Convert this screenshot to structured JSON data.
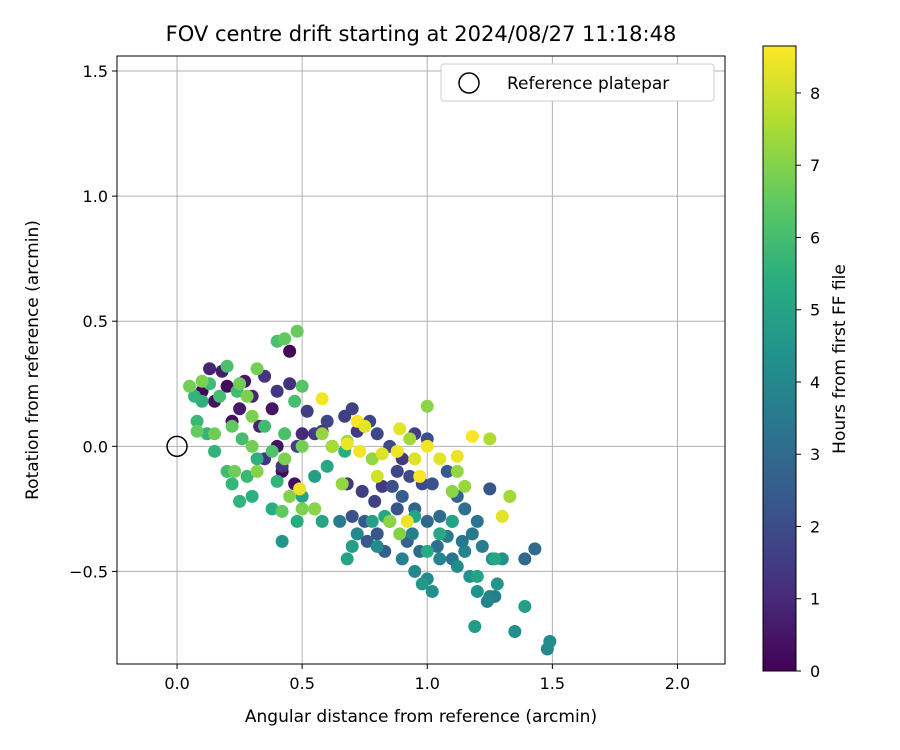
{
  "chart_data": {
    "type": "scatter",
    "title": "FOV centre drift starting at 2024/08/27 11:18:48",
    "xlabel": "Angular distance from reference (arcmin)",
    "ylabel": "Rotation from reference (arcmin)",
    "xlim": [
      -0.24,
      2.19
    ],
    "ylim": [
      -0.87,
      1.56
    ],
    "xticks": [
      0.0,
      0.5,
      1.0,
      1.5,
      2.0
    ],
    "xtick_labels": [
      "0.0",
      "0.5",
      "1.0",
      "1.5",
      "2.0"
    ],
    "yticks": [
      -0.5,
      0.0,
      0.5,
      1.0,
      1.5
    ],
    "ytick_labels": [
      "−0.5",
      "0.0",
      "0.5",
      "1.0",
      "1.5"
    ],
    "grid": true,
    "legend": {
      "position": "top-right",
      "entries": [
        "Reference platepar"
      ]
    },
    "colorbar": {
      "label": "Hours from first FF file",
      "range": [
        0,
        8.65
      ],
      "ticks": [
        0,
        1,
        2,
        3,
        4,
        5,
        6,
        7,
        8
      ],
      "tick_labels": [
        "0",
        "1",
        "2",
        "3",
        "4",
        "5",
        "6",
        "7",
        "8"
      ],
      "colormap": "viridis"
    },
    "reference_point": {
      "x": 0.0,
      "y": 0.0,
      "name": "Reference platepar"
    },
    "series": [
      {
        "values": [
          [
            0.1,
            0.22,
            0.0
          ],
          [
            0.15,
            0.18,
            0.4
          ],
          [
            0.2,
            0.24,
            0.2
          ],
          [
            0.25,
            0.15,
            0.6
          ],
          [
            0.3,
            0.2,
            0.9
          ],
          [
            0.22,
            0.1,
            0.3
          ],
          [
            0.18,
            0.3,
            0.7
          ],
          [
            0.27,
            0.26,
            0.5
          ],
          [
            0.45,
            0.38,
            0.1
          ],
          [
            0.33,
            0.08,
            0.8
          ],
          [
            0.42,
            -0.1,
            0.2
          ],
          [
            0.47,
            -0.15,
            0.3
          ],
          [
            0.4,
            0.0,
            0.4
          ],
          [
            0.5,
            0.05,
            1.0
          ],
          [
            0.38,
            0.15,
            0.5
          ],
          [
            0.13,
            0.31,
            0.9
          ],
          [
            0.35,
            0.28,
            1.3
          ],
          [
            0.4,
            0.22,
            1.4
          ],
          [
            0.45,
            0.25,
            1.2
          ],
          [
            0.52,
            0.14,
            1.6
          ],
          [
            0.55,
            0.05,
            1.5
          ],
          [
            0.6,
            0.1,
            1.8
          ],
          [
            0.48,
            0.0,
            1.7
          ],
          [
            0.35,
            -0.05,
            1.4
          ],
          [
            0.42,
            -0.08,
            1.3
          ],
          [
            0.62,
            0.0,
            1.9
          ],
          [
            0.67,
            0.12,
            1.6
          ],
          [
            0.7,
            0.15,
            1.7
          ],
          [
            0.72,
            0.06,
            1.5
          ],
          [
            0.77,
            0.1,
            1.8
          ],
          [
            0.8,
            0.05,
            1.9
          ],
          [
            0.85,
            0.0,
            2.0
          ],
          [
            0.68,
            -0.15,
            1.4
          ],
          [
            0.74,
            -0.18,
            1.6
          ],
          [
            0.79,
            -0.22,
            1.7
          ],
          [
            0.82,
            -0.16,
            1.5
          ],
          [
            0.88,
            -0.1,
            1.8
          ],
          [
            0.93,
            -0.12,
            2.0
          ],
          [
            0.98,
            -0.15,
            1.9
          ],
          [
            1.0,
            0.03,
            2.1
          ],
          [
            0.95,
            0.05,
            1.6
          ],
          [
            0.9,
            -0.05,
            1.5
          ],
          [
            0.58,
            0.06,
            1.3
          ],
          [
            0.7,
            -0.28,
            2.2
          ],
          [
            0.75,
            -0.3,
            2.4
          ],
          [
            0.8,
            -0.35,
            2.3
          ],
          [
            0.85,
            -0.3,
            2.5
          ],
          [
            0.9,
            -0.2,
            2.6
          ],
          [
            0.95,
            -0.25,
            2.7
          ],
          [
            1.0,
            -0.3,
            2.9
          ],
          [
            1.05,
            -0.28,
            3.0
          ],
          [
            1.1,
            -0.3,
            3.1
          ],
          [
            1.15,
            -0.25,
            3.2
          ],
          [
            1.2,
            -0.3,
            3.3
          ],
          [
            1.25,
            -0.17,
            2.3
          ],
          [
            1.02,
            -0.15,
            2.2
          ],
          [
            1.08,
            -0.1,
            2.4
          ],
          [
            1.12,
            -0.2,
            2.8
          ],
          [
            0.86,
            -0.16,
            2.1
          ],
          [
            0.92,
            -0.38,
            2.7
          ],
          [
            0.97,
            -0.42,
            2.9
          ],
          [
            1.04,
            -0.4,
            3.1
          ],
          [
            1.1,
            -0.45,
            3.3
          ],
          [
            1.14,
            -0.38,
            3.4
          ],
          [
            1.18,
            -0.35,
            3.5
          ],
          [
            1.22,
            -0.4,
            3.6
          ],
          [
            0.76,
            -0.38,
            2.4
          ],
          [
            0.83,
            -0.42,
            2.6
          ],
          [
            0.88,
            -0.25,
            2.2
          ],
          [
            1.43,
            -0.41,
            3.0
          ],
          [
            1.39,
            -0.45,
            2.9
          ],
          [
            0.9,
            -0.45,
            3.8
          ],
          [
            0.95,
            -0.5,
            4.0
          ],
          [
            1.0,
            -0.53,
            4.2
          ],
          [
            1.05,
            -0.45,
            3.9
          ],
          [
            1.12,
            -0.48,
            4.1
          ],
          [
            1.17,
            -0.52,
            4.3
          ],
          [
            1.2,
            -0.58,
            4.4
          ],
          [
            1.26,
            -0.45,
            4.2
          ],
          [
            1.25,
            -0.6,
            3.9
          ],
          [
            1.28,
            -0.55,
            4.5
          ],
          [
            0.98,
            -0.55,
            4.6
          ],
          [
            0.94,
            -0.35,
            3.7
          ],
          [
            1.08,
            -0.36,
            3.6
          ],
          [
            1.15,
            -0.42,
            3.8
          ],
          [
            1.02,
            -0.58,
            4.3
          ],
          [
            0.65,
            -0.3,
            3.6
          ],
          [
            0.72,
            -0.35,
            4.0
          ],
          [
            0.8,
            -0.4,
            4.1
          ],
          [
            1.35,
            -0.74,
            4.3
          ],
          [
            1.19,
            -0.72,
            4.7
          ],
          [
            1.3,
            -0.45,
            4.4
          ],
          [
            1.27,
            -0.6,
            3.7
          ],
          [
            1.24,
            -0.62,
            3.9
          ],
          [
            1.48,
            -0.81,
            4.0
          ],
          [
            1.49,
            -0.78,
            4.1
          ],
          [
            1.39,
            -0.64,
            4.8
          ],
          [
            1.2,
            -0.52,
            5.0
          ],
          [
            1.27,
            -0.45,
            5.1
          ],
          [
            1.1,
            -0.3,
            5.0
          ],
          [
            1.05,
            -0.35,
            5.2
          ],
          [
            0.95,
            -0.28,
            5.0
          ],
          [
            1.0,
            -0.42,
            5.3
          ],
          [
            0.83,
            -0.28,
            5.1
          ],
          [
            0.78,
            -0.3,
            4.9
          ],
          [
            0.68,
            -0.45,
            5.0
          ],
          [
            0.7,
            -0.4,
            4.8
          ],
          [
            0.55,
            -0.25,
            4.9
          ],
          [
            0.58,
            -0.3,
            5.1
          ],
          [
            0.48,
            -0.3,
            5.3
          ],
          [
            0.5,
            -0.2,
            5.0
          ],
          [
            0.6,
            -0.08,
            5.2
          ],
          [
            0.67,
            -0.02,
            5.4
          ],
          [
            0.55,
            -0.12,
            4.8
          ],
          [
            0.42,
            -0.38,
            4.5
          ],
          [
            0.38,
            -0.25,
            5.4
          ],
          [
            0.4,
            -0.14,
            5.6
          ],
          [
            0.3,
            -0.2,
            5.5
          ],
          [
            0.25,
            -0.22,
            5.6
          ],
          [
            0.22,
            -0.15,
            5.7
          ],
          [
            0.32,
            -0.05,
            5.5
          ],
          [
            0.28,
            -0.12,
            5.8
          ],
          [
            0.2,
            -0.1,
            5.9
          ],
          [
            0.15,
            -0.02,
            5.6
          ],
          [
            0.12,
            0.05,
            5.7
          ],
          [
            0.08,
            0.1,
            5.8
          ],
          [
            0.1,
            0.18,
            5.5
          ],
          [
            0.07,
            0.2,
            5.6
          ],
          [
            0.13,
            0.25,
            5.9
          ],
          [
            0.17,
            0.2,
            6.0
          ],
          [
            0.2,
            0.32,
            6.1
          ],
          [
            0.24,
            0.22,
            5.9
          ],
          [
            0.26,
            0.03,
            6.0
          ],
          [
            0.35,
            0.08,
            5.9
          ],
          [
            0.38,
            -0.02,
            6.2
          ],
          [
            0.43,
            0.05,
            6.1
          ],
          [
            0.47,
            0.18,
            6.0
          ],
          [
            0.5,
            0.24,
            6.3
          ],
          [
            0.4,
            0.42,
            6.1
          ],
          [
            0.43,
            0.43,
            6.5
          ],
          [
            0.48,
            0.46,
            6.6
          ],
          [
            0.32,
            0.31,
            6.8
          ],
          [
            0.25,
            0.25,
            6.7
          ],
          [
            0.3,
            0.12,
            6.9
          ],
          [
            0.22,
            0.08,
            6.5
          ],
          [
            0.15,
            0.05,
            6.7
          ],
          [
            0.08,
            0.06,
            6.6
          ],
          [
            0.05,
            0.24,
            6.8
          ],
          [
            0.1,
            0.26,
            6.9
          ],
          [
            0.23,
            -0.1,
            6.7
          ],
          [
            0.32,
            -0.1,
            7.0
          ],
          [
            0.43,
            -0.05,
            6.9
          ],
          [
            0.5,
            0.0,
            6.8
          ],
          [
            0.55,
            -0.25,
            7.1
          ],
          [
            0.5,
            -0.25,
            6.9
          ],
          [
            0.45,
            -0.2,
            7.0
          ],
          [
            0.3,
            0.0,
            6.8
          ],
          [
            0.28,
            0.2,
            6.9
          ],
          [
            0.42,
            -0.26,
            6.5
          ],
          [
            0.58,
            0.05,
            7.2
          ],
          [
            0.62,
            0.0,
            7.5
          ],
          [
            0.68,
            0.02,
            7.3
          ],
          [
            0.78,
            -0.05,
            7.2
          ],
          [
            0.85,
            -0.3,
            7.1
          ],
          [
            0.89,
            -0.35,
            7.0
          ],
          [
            0.93,
            0.03,
            7.4
          ],
          [
            1.0,
            0.16,
            7.1
          ],
          [
            1.12,
            -0.1,
            7.2
          ],
          [
            1.15,
            -0.16,
            7.3
          ],
          [
            1.1,
            -0.18,
            7.1
          ],
          [
            1.25,
            0.03,
            7.6
          ],
          [
            1.33,
            -0.2,
            7.4
          ],
          [
            0.66,
            -0.15,
            7.2
          ],
          [
            0.58,
            0.19,
            8.5
          ],
          [
            0.68,
            0.01,
            8.4
          ],
          [
            0.72,
            0.1,
            8.6
          ],
          [
            0.75,
            0.08,
            8.3
          ],
          [
            0.73,
            -0.02,
            8.5
          ],
          [
            0.82,
            -0.03,
            8.2
          ],
          [
            0.89,
            0.07,
            8.3
          ],
          [
            0.92,
            -0.3,
            8.4
          ],
          [
            0.95,
            -0.05,
            8.2
          ],
          [
            1.0,
            0.0,
            8.5
          ],
          [
            1.05,
            -0.05,
            8.3
          ],
          [
            1.12,
            -0.04,
            8.4
          ],
          [
            1.18,
            0.04,
            8.6
          ],
          [
            1.3,
            -0.28,
            8.3
          ],
          [
            0.49,
            -0.17,
            8.4
          ],
          [
            0.88,
            -0.02,
            8.5
          ],
          [
            0.8,
            -0.12,
            8.1
          ],
          [
            0.97,
            -0.12,
            8.6
          ]
        ]
      }
    ]
  }
}
